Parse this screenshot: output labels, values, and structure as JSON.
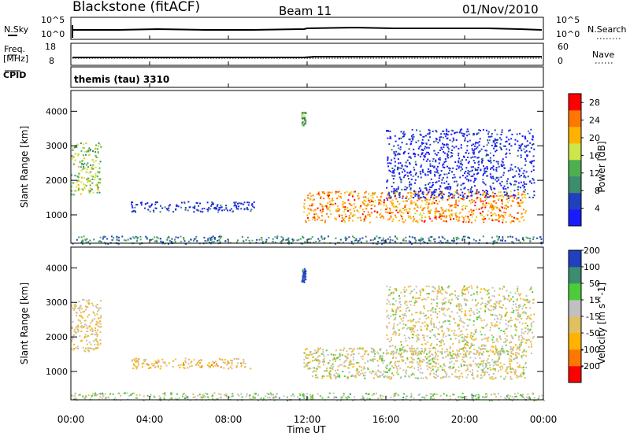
{
  "header": {
    "station": "Blackstone (fitACF)",
    "beam": "Beam 11",
    "date": "01/Nov/2010"
  },
  "summary": {
    "nsky_label": "N.Sky",
    "nsky_tick_top": "10^5",
    "nsky_tick_bottom": "10^0",
    "nsearch_label": "N.Search",
    "nsearch_tick_top": "10^5",
    "nsearch_tick_bottom": "10^0",
    "freq_label": "Freq.",
    "freq_unit": "[MHz]",
    "freq_tick_top": "18",
    "freq_tick_bottom": "8",
    "nave_label": "Nave",
    "nave_tick_top": "60",
    "nave_tick_bottom": "0",
    "cpid_label": "CPID",
    "cpid_value": "themis (tau) 3310"
  },
  "colors": {
    "power_scale": [
      "#1a1aff",
      "#2040c0",
      "#3c8c70",
      "#4caf50",
      "#cde64a",
      "#ffb300",
      "#ff7700",
      "#ff0000"
    ],
    "velocity_scale": [
      "#ff0000",
      "#ff7700",
      "#ffb300",
      "#e0c060",
      "#c0c0c0",
      "#4ccc3a",
      "#3c8c70",
      "#2040c0"
    ],
    "ground": "#c0c0c0"
  },
  "chart_data": [
    {
      "type": "heatmap",
      "panel": "power",
      "ylabel": "Slant Range [km]",
      "xlabel": "Time UT",
      "x_ticks": [
        "00:00",
        "04:00",
        "08:00",
        "12:00",
        "16:00",
        "20:00",
        "00:00"
      ],
      "xlim_hours": [
        0,
        24
      ],
      "y_ticks": [
        "1000",
        "2000",
        "3000",
        "4000"
      ],
      "ylim": [
        180,
        4600
      ],
      "colorbar": {
        "label": "Power [dB]",
        "ticks": [
          "4",
          "8",
          "12",
          "16",
          "20",
          "24",
          "28"
        ],
        "range": [
          0,
          30
        ]
      },
      "features": [
        {
          "t": [
            0.0,
            1.5
          ],
          "r": [
            1600,
            3100
          ],
          "level": 0.5
        },
        {
          "t": [
            3.0,
            9.3
          ],
          "r": [
            1100,
            1400
          ],
          "level": 0.15
        },
        {
          "t": [
            11.7,
            11.9
          ],
          "r": [
            3600,
            4000
          ],
          "level": 0.4
        },
        {
          "t": [
            11.8,
            23.1
          ],
          "r": [
            800,
            1700
          ],
          "level": 0.75
        },
        {
          "t": [
            16.0,
            23.5
          ],
          "r": [
            1500,
            3500
          ],
          "level": 0.1
        },
        {
          "t": [
            0.0,
            24.0
          ],
          "r": [
            180,
            400
          ],
          "level": 0.3
        }
      ]
    },
    {
      "type": "heatmap",
      "panel": "velocity",
      "ylabel": "Slant Range [km]",
      "xlabel": "Time UT",
      "x_ticks": [
        "00:00",
        "04:00",
        "08:00",
        "12:00",
        "16:00",
        "20:00",
        "00:00"
      ],
      "xlim_hours": [
        0,
        24
      ],
      "y_ticks": [
        "1000",
        "2000",
        "3000",
        "4000"
      ],
      "ylim": [
        180,
        4600
      ],
      "colorbar": {
        "label": "Velocity [m s^-1]",
        "ticks": [
          "-200",
          "-100",
          "-50",
          "-15",
          "15",
          "50",
          "100",
          "200"
        ],
        "range": [
          -250,
          250
        ]
      },
      "features": [
        {
          "t": [
            0.0,
            1.5
          ],
          "r": [
            1600,
            3100
          ],
          "level": 0.45
        },
        {
          "t": [
            3.0,
            9.3
          ],
          "r": [
            1100,
            1400
          ],
          "level": 0.4
        },
        {
          "t": [
            11.7,
            11.9
          ],
          "r": [
            3600,
            4000
          ],
          "level": 0.95
        },
        {
          "t": [
            11.8,
            23.1
          ],
          "r": [
            800,
            1700
          ],
          "level": 0.5
        },
        {
          "t": [
            16.0,
            23.5
          ],
          "r": [
            1500,
            3500
          ],
          "level": 0.5
        },
        {
          "t": [
            0.0,
            24.0
          ],
          "r": [
            180,
            400
          ],
          "level": 0.6
        }
      ]
    }
  ]
}
